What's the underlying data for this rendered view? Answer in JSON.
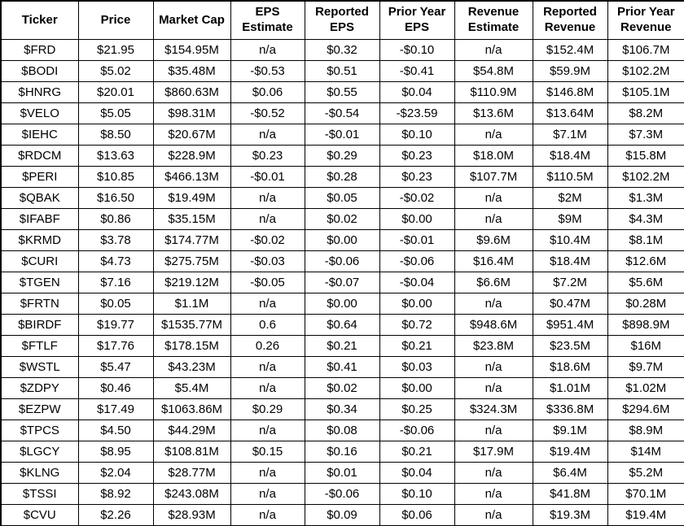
{
  "chart_data": {
    "type": "table",
    "columns": [
      "Ticker",
      "Price",
      "Market Cap",
      "EPS Estimate",
      "Reported EPS",
      "Prior Year EPS",
      "Revenue Estimate",
      "Reported Revenue",
      "Prior Year Revenue"
    ],
    "rows": [
      [
        "$FRD",
        "$21.95",
        "$154.95M",
        "n/a",
        "$0.32",
        "-$0.10",
        "n/a",
        "$152.4M",
        "$106.7M"
      ],
      [
        "$BODI",
        "$5.02",
        "$35.48M",
        "-$0.53",
        "$0.51",
        "-$0.41",
        "$54.8M",
        "$59.9M",
        "$102.2M"
      ],
      [
        "$HNRG",
        "$20.01",
        "$860.63M",
        "$0.06",
        "$0.55",
        "$0.04",
        "$110.9M",
        "$146.8M",
        "$105.1M"
      ],
      [
        "$VELO",
        "$5.05",
        "$98.31M",
        "-$0.52",
        "-$0.54",
        "-$23.59",
        "$13.6M",
        "$13.64M",
        "$8.2M"
      ],
      [
        "$IEHC",
        "$8.50",
        "$20.67M",
        "n/a",
        "-$0.01",
        "$0.10",
        "n/a",
        "$7.1M",
        "$7.3M"
      ],
      [
        "$RDCM",
        "$13.63",
        "$228.9M",
        "$0.23",
        "$0.29",
        "$0.23",
        "$18.0M",
        "$18.4M",
        "$15.8M"
      ],
      [
        "$PERI",
        "$10.85",
        "$466.13M",
        "-$0.01",
        "$0.28",
        "$0.23",
        "$107.7M",
        "$110.5M",
        "$102.2M"
      ],
      [
        "$QBAK",
        "$16.50",
        "$19.49M",
        "n/a",
        "$0.05",
        "-$0.02",
        "n/a",
        "$2M",
        "$1.3M"
      ],
      [
        "$IFABF",
        "$0.86",
        "$35.15M",
        "n/a",
        "$0.02",
        "$0.00",
        "n/a",
        "$9M",
        "$4.3M"
      ],
      [
        "$KRMD",
        "$3.78",
        "$174.77M",
        "-$0.02",
        "$0.00",
        "-$0.01",
        "$9.6M",
        "$10.4M",
        "$8.1M"
      ],
      [
        "$CURI",
        "$4.73",
        "$275.75M",
        "-$0.03",
        "-$0.06",
        "-$0.06",
        "$16.4M",
        "$18.4M",
        "$12.6M"
      ],
      [
        "$TGEN",
        "$7.16",
        "$219.12M",
        "-$0.05",
        "-$0.07",
        "-$0.04",
        "$6.6M",
        "$7.2M",
        "$5.6M"
      ],
      [
        "$FRTN",
        "$0.05",
        "$1.1M",
        "n/a",
        "$0.00",
        "$0.00",
        "n/a",
        "$0.47M",
        "$0.28M"
      ],
      [
        "$BIRDF",
        "$19.77",
        "$1535.77M",
        "0.6",
        "$0.64",
        "$0.72",
        "$948.6M",
        "$951.4M",
        "$898.9M"
      ],
      [
        "$FTLF",
        "$17.76",
        "$178.15M",
        "0.26",
        "$0.21",
        "$0.21",
        "$23.8M",
        "$23.5M",
        "$16M"
      ],
      [
        "$WSTL",
        "$5.47",
        "$43.23M",
        "n/a",
        "$0.41",
        "$0.03",
        "n/a",
        "$18.6M",
        "$9.7M"
      ],
      [
        "$ZDPY",
        "$0.46",
        "$5.4M",
        "n/a",
        "$0.02",
        "$0.00",
        "n/a",
        "$1.01M",
        "$1.02M"
      ],
      [
        "$EZPW",
        "$17.49",
        "$1063.86M",
        "$0.29",
        "$0.34",
        "$0.25",
        "$324.3M",
        "$336.8M",
        "$294.6M"
      ],
      [
        "$TPCS",
        "$4.50",
        "$44.29M",
        "n/a",
        "$0.08",
        "-$0.06",
        "n/a",
        "$9.1M",
        "$8.9M"
      ],
      [
        "$LGCY",
        "$8.95",
        "$108.81M",
        "$0.15",
        "$0.16",
        "$0.21",
        "$17.9M",
        "$19.4M",
        "$14M"
      ],
      [
        "$KLNG",
        "$2.04",
        "$28.77M",
        "n/a",
        "$0.01",
        "$0.04",
        "n/a",
        "$6.4M",
        "$5.2M"
      ],
      [
        "$TSSI",
        "$8.92",
        "$243.08M",
        "n/a",
        "-$0.06",
        "$0.10",
        "n/a",
        "$41.8M",
        "$70.1M"
      ],
      [
        "$CVU",
        "$2.26",
        "$28.93M",
        "n/a",
        "$0.09",
        "$0.06",
        "n/a",
        "$19.3M",
        "$19.4M"
      ]
    ]
  },
  "colors": {
    "text": "#000000",
    "border": "#000000",
    "background": "#ffffff"
  }
}
